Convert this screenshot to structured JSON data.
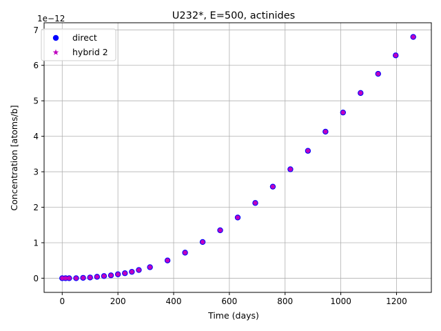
{
  "chart_data": {
    "type": "scatter",
    "title": "U232*, E=500, actinides",
    "xlabel": "Time (days)",
    "ylabel": "Concentration [atoms/b]",
    "y_offset_label": "1e−12",
    "xlim": [
      -65,
      1325
    ],
    "ylim": [
      -0.4,
      7.2
    ],
    "x_ticks": [
      0,
      200,
      400,
      600,
      800,
      1000,
      1200
    ],
    "y_ticks": [
      0,
      1,
      2,
      3,
      4,
      5,
      6,
      7
    ],
    "x_tick_labels": [
      "0",
      "200",
      "400",
      "600",
      "800",
      "1000",
      "1200"
    ],
    "y_tick_labels": [
      "0",
      "1",
      "2",
      "3",
      "4",
      "5",
      "6",
      "7"
    ],
    "grid": true,
    "legend_position": "top-left",
    "series": [
      {
        "name": "direct",
        "marker": "circle",
        "color": "#0000ff",
        "x": [
          0,
          12,
          25,
          50,
          75,
          100,
          125,
          150,
          175,
          200,
          225,
          250,
          275,
          315,
          378,
          441,
          504,
          567,
          630,
          693,
          756,
          819,
          882,
          945,
          1008,
          1071,
          1134,
          1197,
          1260
        ],
        "y": [
          0.0,
          0.0,
          0.0,
          0.0,
          0.01,
          0.02,
          0.04,
          0.06,
          0.08,
          0.11,
          0.14,
          0.18,
          0.23,
          0.31,
          0.5,
          0.72,
          1.02,
          1.35,
          1.71,
          2.12,
          2.58,
          3.07,
          3.59,
          4.13,
          4.67,
          5.22,
          5.76,
          6.28,
          6.8
        ]
      },
      {
        "name": "hybrid 2",
        "marker": "star",
        "color": "#bf00bf",
        "x": [
          0,
          12,
          25,
          50,
          75,
          100,
          125,
          150,
          175,
          200,
          225,
          250,
          275,
          315,
          378,
          441,
          504,
          567,
          630,
          693,
          756,
          819,
          882,
          945,
          1008,
          1071,
          1134,
          1197,
          1260
        ],
        "y": [
          0.0,
          0.0,
          0.0,
          0.0,
          0.01,
          0.02,
          0.04,
          0.06,
          0.08,
          0.11,
          0.14,
          0.18,
          0.23,
          0.31,
          0.5,
          0.72,
          1.02,
          1.35,
          1.71,
          2.12,
          2.58,
          3.07,
          3.59,
          4.13,
          4.67,
          5.22,
          5.76,
          6.28,
          6.8
        ]
      }
    ]
  }
}
